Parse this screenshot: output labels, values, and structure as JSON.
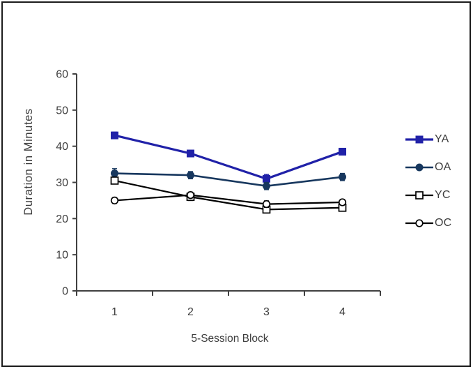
{
  "figure": {
    "background": "#ffffff",
    "border_color": "#1c1c1c"
  },
  "chart_data": {
    "type": "line",
    "title": "",
    "xlabel": "5-Session Block",
    "ylabel": "Duration in Minutes",
    "categories": [
      "1",
      "2",
      "3",
      "4"
    ],
    "y_ticks": [
      0,
      10,
      20,
      30,
      40,
      50,
      60
    ],
    "ylim": [
      0,
      60
    ],
    "grid": false,
    "legend_position": "right",
    "axis_color": "#404040",
    "text_color": "#3d3d3d",
    "error_bars": true,
    "series": [
      {
        "name": "YA",
        "color": "#2021a8",
        "marker": "filled-square",
        "values": [
          43,
          38,
          31,
          38.5
        ],
        "errors": [
          0.9,
          0.7,
          1.2,
          0.8
        ],
        "line_width": 3.2
      },
      {
        "name": "OA",
        "color": "#17375e",
        "marker": "filled-circle",
        "values": [
          32.5,
          32,
          29,
          31.5
        ],
        "errors": [
          1.3,
          1.0,
          1.0,
          1.0
        ],
        "line_width": 2.6
      },
      {
        "name": "YC",
        "color": "#000000",
        "marker": "open-square",
        "values": [
          30.5,
          26,
          22.5,
          23
        ],
        "errors": [
          0.9,
          1.0,
          0.9,
          0.8
        ],
        "line_width": 2.2
      },
      {
        "name": "OC",
        "color": "#000000",
        "marker": "open-circle",
        "values": [
          25,
          26.5,
          24,
          24.5
        ],
        "errors": [
          0.8,
          0.8,
          0.9,
          0.7
        ],
        "line_width": 2.2
      }
    ]
  }
}
